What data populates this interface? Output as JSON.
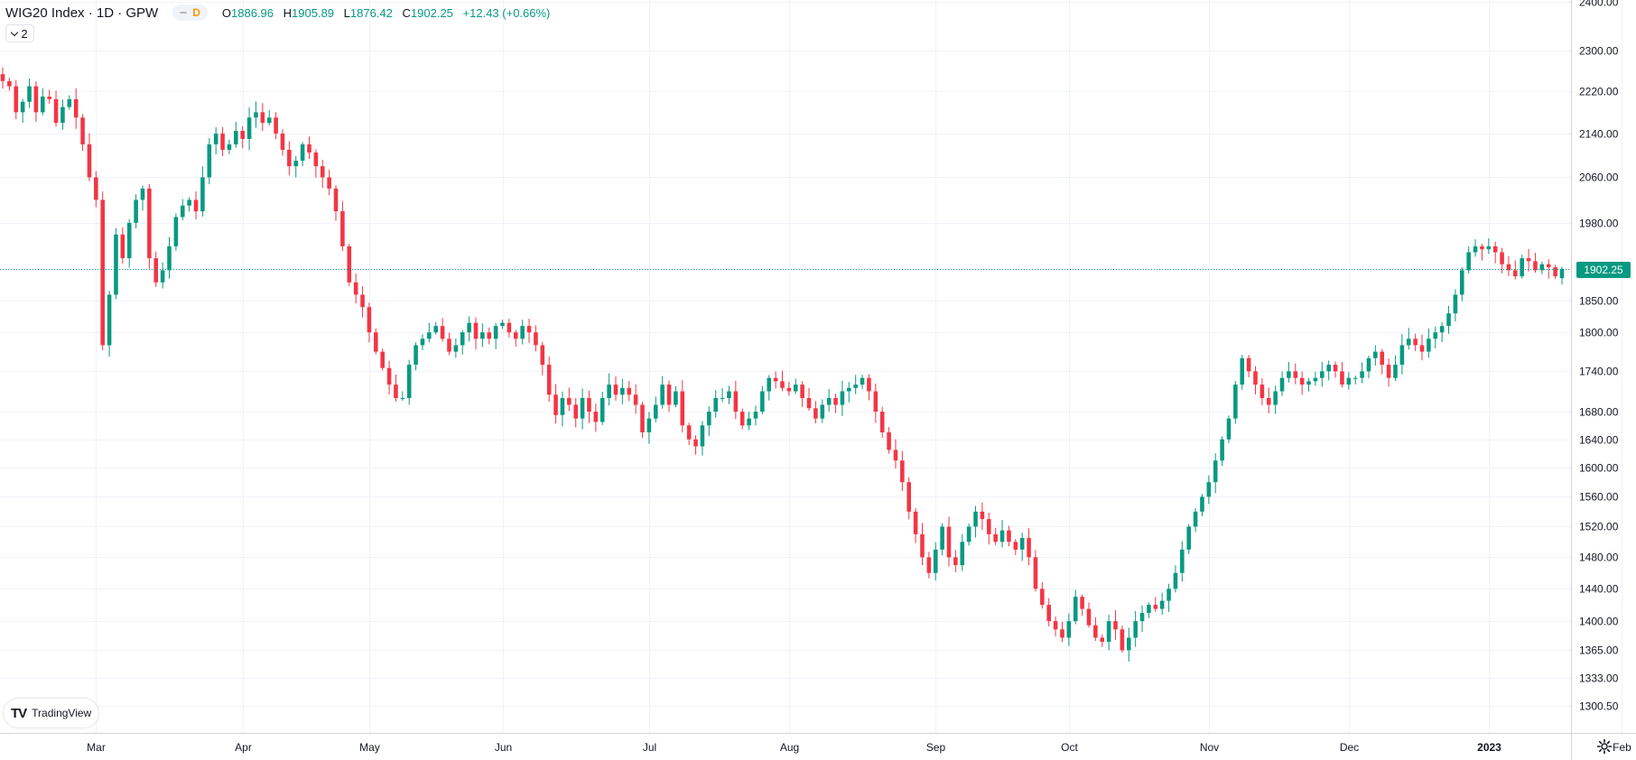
{
  "header": {
    "title": "WIG20 Index · 1D · GPW",
    "badge": "D",
    "ohlc": {
      "o_label": "O",
      "o": "1886.96",
      "h_label": "H",
      "h": "1905.89",
      "l_label": "L",
      "l": "1876.42",
      "c_label": "C",
      "c": "1902.25",
      "change": "+12.43 (+0.66%)"
    }
  },
  "indicator_toggle": {
    "count": "2"
  },
  "logo": {
    "text": "TradingView",
    "mark": "TV"
  },
  "last_price": "1902.25",
  "colors": {
    "up": "#089981",
    "down": "#f23645",
    "grid": "#f0f3fa",
    "axis": "#d1d4dc"
  },
  "chart_data": {
    "type": "candlestick",
    "title": "WIG20 Index · 1D · GPW",
    "y_scale": "log",
    "y_ticks": [
      2400,
      2300,
      2220,
      2140,
      2060,
      1980,
      1850,
      1800,
      1740,
      1680,
      1640,
      1600,
      1560,
      1520,
      1480,
      1440,
      1400,
      1365,
      1333,
      1300.5
    ],
    "y_tick_labels": [
      "2400.00",
      "2300.00",
      "2220.00",
      "2140.00",
      "2060.00",
      "1980.00",
      "1850.00",
      "1800.00",
      "1740.00",
      "1680.00",
      "1640.00",
      "1600.00",
      "1560.00",
      "1520.00",
      "1480.00",
      "1440.00",
      "1400.00",
      "1365.00",
      "1333.00",
      "1300.50"
    ],
    "x_ticks": [
      {
        "label": "Mar",
        "index": 14
      },
      {
        "label": "Apr",
        "index": 36
      },
      {
        "label": "May",
        "index": 55
      },
      {
        "label": "Jun",
        "index": 75
      },
      {
        "label": "Jul",
        "index": 97
      },
      {
        "label": "Aug",
        "index": 118
      },
      {
        "label": "Sep",
        "index": 140
      },
      {
        "label": "Oct",
        "index": 160
      },
      {
        "label": "Nov",
        "index": 181
      },
      {
        "label": "Dec",
        "index": 202
      },
      {
        "label": "2023",
        "index": 223
      },
      {
        "label": "Feb",
        "index": 243
      }
    ],
    "last_close": 1902.25,
    "closes": [
      2240,
      2230,
      2180,
      2200,
      2230,
      2180,
      2210,
      2205,
      2160,
      2190,
      2205,
      2170,
      2120,
      2060,
      2020,
      1780,
      1860,
      1960,
      1920,
      1980,
      2020,
      2040,
      1920,
      1880,
      1900,
      1940,
      1990,
      2010,
      2020,
      2000,
      2060,
      2120,
      2140,
      2110,
      2120,
      2145,
      2130,
      2170,
      2180,
      2160,
      2170,
      2140,
      2110,
      2080,
      2090,
      2120,
      2105,
      2080,
      2060,
      2040,
      2000,
      1940,
      1880,
      1860,
      1840,
      1800,
      1770,
      1745,
      1720,
      1700,
      1700,
      1750,
      1780,
      1790,
      1800,
      1810,
      1790,
      1770,
      1780,
      1800,
      1815,
      1790,
      1800,
      1790,
      1810,
      1815,
      1800,
      1790,
      1810,
      1800,
      1780,
      1750,
      1705,
      1675,
      1700,
      1690,
      1670,
      1700,
      1680,
      1665,
      1700,
      1720,
      1705,
      1715,
      1705,
      1690,
      1650,
      1670,
      1690,
      1720,
      1690,
      1710,
      1660,
      1640,
      1630,
      1660,
      1680,
      1700,
      1700,
      1710,
      1680,
      1660,
      1670,
      1680,
      1710,
      1730,
      1725,
      1715,
      1710,
      1720,
      1700,
      1685,
      1670,
      1690,
      1700,
      1690,
      1710,
      1715,
      1720,
      1730,
      1710,
      1680,
      1650,
      1625,
      1610,
      1580,
      1540,
      1510,
      1480,
      1460,
      1490,
      1520,
      1480,
      1470,
      1500,
      1520,
      1540,
      1530,
      1510,
      1500,
      1515,
      1500,
      1490,
      1505,
      1480,
      1440,
      1420,
      1400,
      1390,
      1380,
      1400,
      1430,
      1415,
      1395,
      1380,
      1375,
      1400,
      1390,
      1365,
      1380,
      1400,
      1410,
      1420,
      1415,
      1425,
      1440,
      1460,
      1490,
      1520,
      1540,
      1560,
      1580,
      1610,
      1640,
      1670,
      1720,
      1760,
      1740,
      1720,
      1700,
      1690,
      1710,
      1730,
      1740,
      1730,
      1720,
      1725,
      1730,
      1740,
      1750,
      1740,
      1720,
      1730,
      1730,
      1740,
      1760,
      1770,
      1750,
      1730,
      1750,
      1780,
      1790,
      1780,
      1770,
      1790,
      1800,
      1810,
      1830,
      1860,
      1900,
      1930,
      1940,
      1935,
      1940,
      1930,
      1910,
      1900,
      1890,
      1920,
      1915,
      1900,
      1910,
      1905,
      1890,
      1902.25
    ]
  }
}
